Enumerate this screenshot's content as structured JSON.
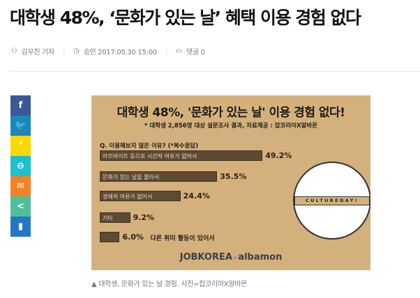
{
  "article": {
    "title": "대학생 48%, ‘문화가 있는 날’ 혜택 이용 경험 없다",
    "author": "김우진 기자",
    "date": "승인 2017.05.30 15:00",
    "comments": "댓글 0"
  },
  "share": [
    {
      "icon": "facebook-icon",
      "glyph": "f",
      "color": "#3b5998"
    },
    {
      "icon": "twitter-icon",
      "glyph": "🐦",
      "color": "#1a88b8"
    },
    {
      "icon": "kakaostory-icon",
      "glyph": "❜",
      "color": "#f9d900"
    },
    {
      "icon": "link-icon",
      "glyph": "⊖",
      "color": "#1ebfce"
    },
    {
      "icon": "mail-icon",
      "glyph": "✉",
      "color": "#f28224"
    },
    {
      "icon": "share-icon",
      "glyph": "<",
      "color": "#4fbf9b"
    },
    {
      "icon": "bookmark-icon",
      "glyph": "▮",
      "color": "#2477c4"
    }
  ],
  "infographic": {
    "title": "대학생 48%, '문화가 있는 날' 이용 경험 없다!",
    "subtitle": "* 대학생 2,856명 대상 설문조사 결과, 자료제공 : 잡코리아X알바몬",
    "question": "Q. 이용해보지 않은 이유? (*복수응답)",
    "items": [
      {
        "label": "아르바이트 등으로 시간적 여유가 없어서",
        "value": 49.2,
        "text": "49.2%"
      },
      {
        "label": "문화가 있는 날을 몰라서",
        "value": 35.5,
        "text": "35.5%"
      },
      {
        "label": "경제적 여유가 없어서",
        "value": 24.4,
        "text": "24.4%"
      },
      {
        "label": "기타",
        "value": 9.2,
        "text": "9.2%"
      },
      {
        "label": "다른 취미 활동이 있어서",
        "value": 6.0,
        "text": "6.0%"
      }
    ],
    "globe_text": "CULTUREDAY!",
    "logo_left": "JOBKOREA",
    "logo_x": "×",
    "logo_right": "albamon"
  },
  "caption": "▲ 대학생, 문화가 있는 날 경험. 사진=잡코리아X알바몬"
}
